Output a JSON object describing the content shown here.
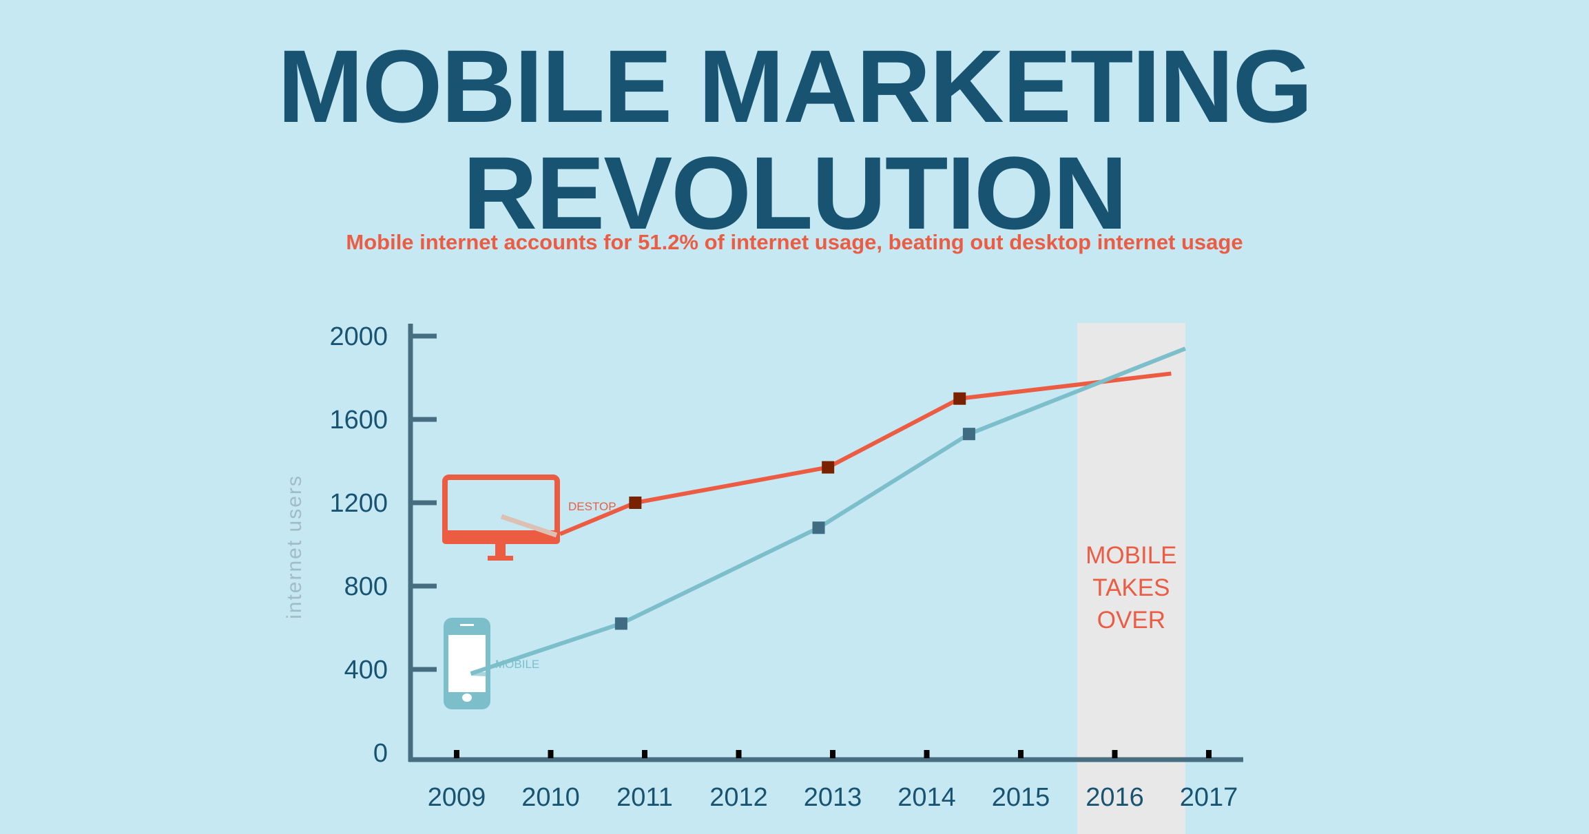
{
  "header": {
    "title_line1": "MOBILE MARKETING",
    "title_line2": "REVOLUTION",
    "subtitle": "Mobile internet accounts for 51.2% of internet usage, beating out desktop internet usage"
  },
  "colors": {
    "background": "#c6e8f2",
    "title": "#185472",
    "accent": "#ec5c43",
    "desktop": "#ec5c43",
    "desktop_marker": "#7a2200",
    "mobile": "#7cbfcb",
    "mobile_marker": "#3f6c82",
    "axis": "#466e80",
    "highlight_band": "#e8e8e8"
  },
  "chart_data": {
    "type": "line",
    "ylabel": "internet users",
    "xlabel": "",
    "ylim": [
      0,
      2000
    ],
    "y_ticks": [
      "0",
      "400",
      "800",
      "1200",
      "1600",
      "2000"
    ],
    "y_tick_values": [
      0,
      400,
      800,
      1200,
      1600,
      2000
    ],
    "x_ticks": [
      "2009",
      "2010",
      "2011",
      "2012",
      "2013",
      "2014",
      "2015",
      "2016",
      "2017"
    ],
    "x_tick_values": [
      2009,
      2010,
      2011,
      2012,
      2013,
      2014,
      2015,
      2016,
      2017
    ],
    "highlight_tick": "2016",
    "grid": false,
    "highlight": {
      "from": 2015.6,
      "to": 2016.75,
      "label_lines": [
        "MOBILE",
        "TAKES",
        "OVER"
      ]
    },
    "series": [
      {
        "name": "DESTOP",
        "icon": "desktop-monitor-icon",
        "x": [
          2010.1,
          2010.9,
          2012.95,
          2014.35,
          2016.6
        ],
        "y": [
          1050,
          1200,
          1370,
          1700,
          1820
        ],
        "markers": [
          false,
          true,
          true,
          true,
          false
        ]
      },
      {
        "name": "MOBILE",
        "icon": "smartphone-icon",
        "x": [
          2009.15,
          2010.75,
          2012.85,
          2014.45,
          2016.75
        ],
        "y": [
          380,
          620,
          1080,
          1530,
          1940
        ],
        "markers": [
          false,
          true,
          true,
          true,
          false
        ]
      }
    ]
  }
}
